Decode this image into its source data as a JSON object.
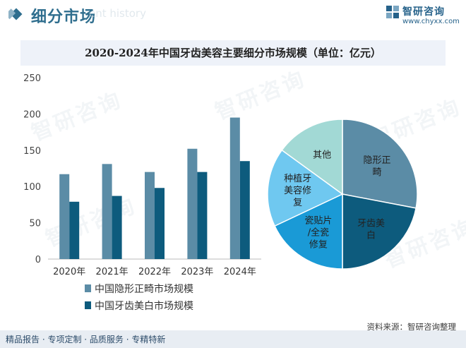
{
  "header": {
    "section_title": "细分市场",
    "watermark_en": "ent history",
    "logo_name": "智研咨询",
    "logo_site": "www.chyxx.com"
  },
  "chart_title": "2020-2024年中国牙齿美容主要细分市场规模（单位：亿元）",
  "watermark_text": "智研咨询",
  "chart_data": [
    {
      "type": "bar",
      "categories": [
        "2020年",
        "2021年",
        "2022年",
        "2023年",
        "2024年"
      ],
      "series": [
        {
          "name": "中国隐形正畸市场规模",
          "color": "#5b8ca6",
          "values": [
            117,
            131,
            120,
            152,
            195
          ]
        },
        {
          "name": "中国牙齿美白市场规模",
          "color": "#0d5b7d",
          "values": [
            79,
            87,
            98,
            120,
            135
          ]
        }
      ],
      "ylim": [
        0,
        250
      ],
      "yticks": [
        0,
        50,
        100,
        150,
        200,
        250
      ],
      "grid": false,
      "legend_position": "bottom"
    },
    {
      "type": "pie",
      "slices": [
        {
          "label": "隐形正\n畸",
          "value": 28,
          "color": "#5b8ca6"
        },
        {
          "label": "牙齿美\n白",
          "value": 22,
          "color": "#0d5b7d"
        },
        {
          "label": "瓷贴片\n/全瓷\n修复",
          "value": 18,
          "color": "#1a9ad6"
        },
        {
          "label": "种植牙\n美容修\n复",
          "value": 17,
          "color": "#6fc8f0"
        },
        {
          "label": "其他",
          "value": 15,
          "color": "#a2d9d5"
        }
      ]
    }
  ],
  "footer": {
    "tags": "精品报告 · 专项定制 · 品质服务 · 专精特新",
    "source": "资料来源：智研咨询整理"
  }
}
